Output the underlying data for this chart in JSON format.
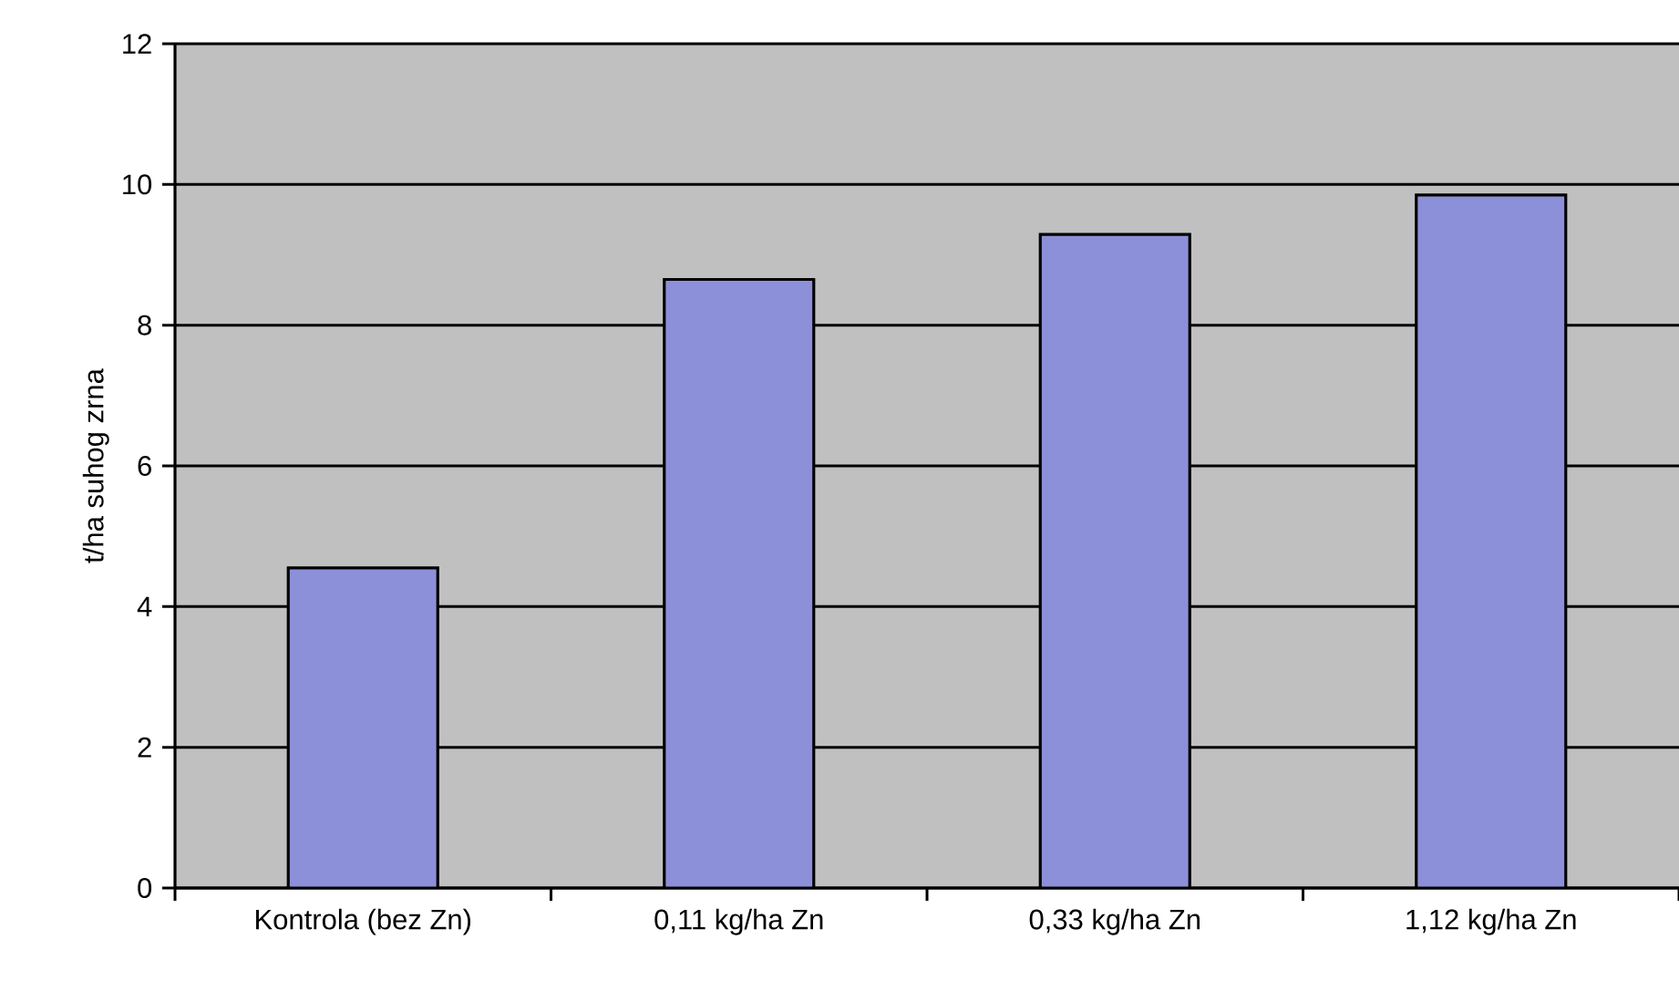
{
  "chart_data": {
    "type": "bar",
    "ylabel": "t/ha suhog zrna",
    "categories": [
      "Kontrola (bez Zn)",
      "0,11 kg/ha Zn",
      "0,33 kg/ha Zn",
      "1,12 kg/ha Zn"
    ],
    "values": [
      4.55,
      8.65,
      9.29,
      9.85
    ],
    "color": "#8c90d8",
    "ylim": [
      0,
      12
    ],
    "yticks": [
      0,
      2,
      4,
      6,
      8,
      10,
      12
    ],
    "grid": "y"
  }
}
